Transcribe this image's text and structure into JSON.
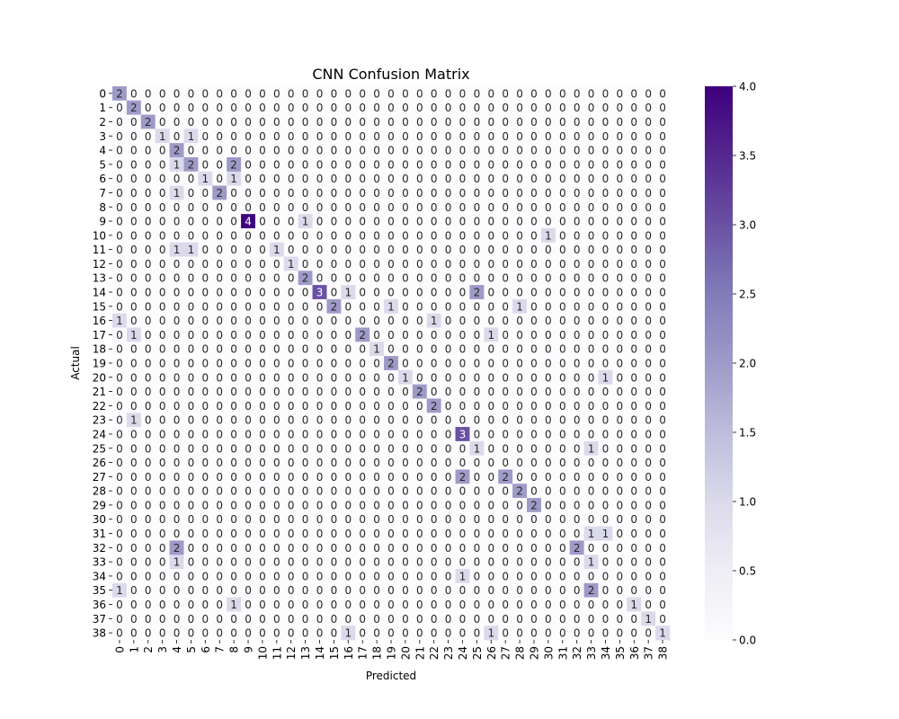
{
  "chart_data": {
    "type": "heatmap",
    "title": "CNN Confusion Matrix",
    "xlabel": "Predicted",
    "ylabel": "Actual",
    "categories": [
      "0",
      "1",
      "2",
      "3",
      "4",
      "5",
      "6",
      "7",
      "8",
      "9",
      "10",
      "11",
      "12",
      "13",
      "14",
      "15",
      "16",
      "17",
      "18",
      "19",
      "20",
      "21",
      "22",
      "23",
      "24",
      "25",
      "26",
      "27",
      "28",
      "29",
      "30",
      "31",
      "32",
      "33",
      "34",
      "35",
      "36",
      "37",
      "38"
    ],
    "cells": [
      [
        0,
        0,
        2
      ],
      [
        1,
        1,
        2
      ],
      [
        2,
        2,
        2
      ],
      [
        3,
        3,
        1
      ],
      [
        3,
        5,
        1
      ],
      [
        4,
        4,
        2
      ],
      [
        5,
        4,
        1
      ],
      [
        5,
        5,
        2
      ],
      [
        5,
        8,
        2
      ],
      [
        6,
        6,
        1
      ],
      [
        6,
        8,
        1
      ],
      [
        7,
        4,
        1
      ],
      [
        7,
        7,
        2
      ],
      [
        9,
        9,
        4
      ],
      [
        9,
        13,
        1
      ],
      [
        10,
        30,
        1
      ],
      [
        11,
        4,
        1
      ],
      [
        11,
        5,
        1
      ],
      [
        11,
        11,
        1
      ],
      [
        12,
        12,
        1
      ],
      [
        13,
        13,
        2
      ],
      [
        14,
        14,
        3
      ],
      [
        14,
        16,
        1
      ],
      [
        14,
        25,
        2
      ],
      [
        15,
        15,
        2
      ],
      [
        15,
        19,
        1
      ],
      [
        15,
        28,
        1
      ],
      [
        16,
        0,
        1
      ],
      [
        16,
        22,
        1
      ],
      [
        17,
        1,
        1
      ],
      [
        17,
        17,
        2
      ],
      [
        17,
        26,
        1
      ],
      [
        18,
        18,
        1
      ],
      [
        19,
        19,
        2
      ],
      [
        20,
        20,
        1
      ],
      [
        20,
        34,
        1
      ],
      [
        21,
        21,
        2
      ],
      [
        22,
        22,
        2
      ],
      [
        23,
        1,
        1
      ],
      [
        24,
        24,
        3
      ],
      [
        25,
        25,
        1
      ],
      [
        25,
        33,
        1
      ],
      [
        27,
        24,
        2
      ],
      [
        27,
        27,
        2
      ],
      [
        28,
        28,
        2
      ],
      [
        29,
        29,
        2
      ],
      [
        31,
        33,
        1
      ],
      [
        31,
        34,
        1
      ],
      [
        32,
        4,
        2
      ],
      [
        32,
        32,
        2
      ],
      [
        33,
        4,
        1
      ],
      [
        33,
        33,
        1
      ],
      [
        34,
        24,
        1
      ],
      [
        35,
        0,
        1
      ],
      [
        35,
        33,
        2
      ],
      [
        36,
        8,
        1
      ],
      [
        36,
        36,
        1
      ],
      [
        37,
        37,
        1
      ],
      [
        38,
        16,
        1
      ],
      [
        38,
        26,
        1
      ],
      [
        38,
        38,
        1
      ]
    ],
    "colorbar": {
      "min": 0.0,
      "max": 4.0,
      "ticks": [
        "0.0",
        "0.5",
        "1.0",
        "1.5",
        "2.0",
        "2.5",
        "3.0",
        "3.5",
        "4.0"
      ],
      "colors": [
        "#fcfbfd",
        "#efedf5",
        "#dadaeb",
        "#bcbddc",
        "#9e9ac8",
        "#807dba",
        "#6a51a3",
        "#54278f",
        "#3f007d"
      ]
    },
    "grid": false,
    "legend": "colorbar-right"
  }
}
